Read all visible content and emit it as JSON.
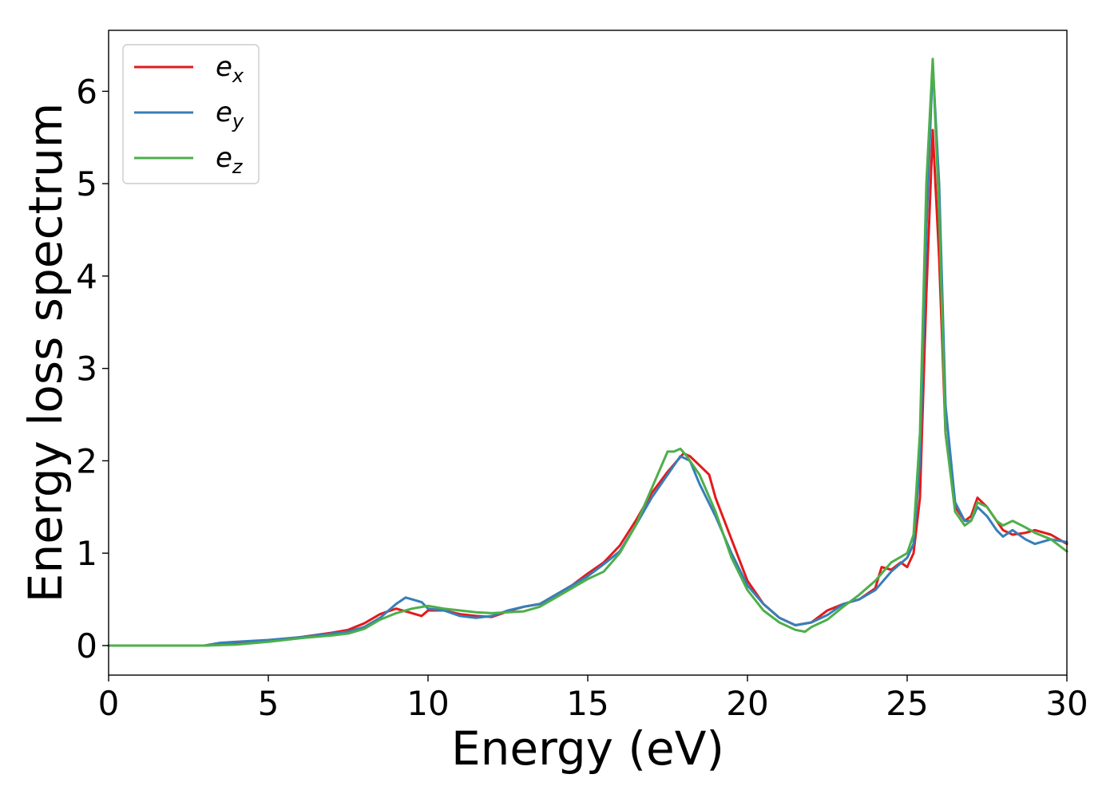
{
  "chart_data": {
    "type": "line",
    "xlabel": "Energy (eV)",
    "ylabel": "Energy loss spectrum",
    "xlim": [
      0,
      30
    ],
    "ylim": [
      -0.32,
      6.66
    ],
    "xticks": [
      "0",
      "5",
      "10",
      "15",
      "20",
      "25",
      "30"
    ],
    "yticks": [
      "0",
      "1",
      "2",
      "3",
      "4",
      "5",
      "6"
    ],
    "grid": false,
    "legend_position": "upper-left",
    "series": [
      {
        "name": "e_x",
        "label_base": "e",
        "label_sub": "x",
        "color": "#e41a1c",
        "x": [
          0,
          3,
          3.5,
          4,
          5,
          6,
          7,
          7.5,
          8,
          8.5,
          9,
          9.5,
          9.8,
          10,
          10.5,
          11,
          11.5,
          12,
          12.5,
          13,
          13.5,
          14,
          14.5,
          15,
          15.5,
          16,
          16.5,
          17,
          17.5,
          17.8,
          18,
          18.2,
          18.5,
          18.8,
          19,
          19.5,
          20,
          20.5,
          21,
          21.5,
          22,
          22.5,
          23,
          23.5,
          24,
          24.2,
          24.5,
          24.8,
          25,
          25.2,
          25.4,
          25.6,
          25.8,
          26,
          26.2,
          26.5,
          26.8,
          27,
          27.2,
          27.5,
          27.8,
          28,
          28.3,
          28.7,
          29,
          29.5,
          30
        ],
        "y": [
          0,
          0,
          0.01,
          0.02,
          0.05,
          0.09,
          0.14,
          0.17,
          0.24,
          0.34,
          0.4,
          0.35,
          0.32,
          0.38,
          0.38,
          0.34,
          0.32,
          0.31,
          0.37,
          0.42,
          0.45,
          0.55,
          0.65,
          0.78,
          0.9,
          1.08,
          1.35,
          1.65,
          1.88,
          2.0,
          2.08,
          2.05,
          1.95,
          1.85,
          1.6,
          1.15,
          0.7,
          0.45,
          0.3,
          0.22,
          0.25,
          0.38,
          0.45,
          0.5,
          0.62,
          0.85,
          0.82,
          0.9,
          0.85,
          1.0,
          1.6,
          3.8,
          5.58,
          4.2,
          2.3,
          1.5,
          1.35,
          1.4,
          1.6,
          1.5,
          1.35,
          1.25,
          1.2,
          1.22,
          1.25,
          1.2,
          1.1
        ]
      },
      {
        "name": "e_y",
        "label_base": "e",
        "label_sub": "y",
        "color": "#377eb8",
        "x": [
          0,
          3,
          3.5,
          4,
          5,
          6,
          7,
          7.5,
          8,
          8.5,
          9,
          9.3,
          9.5,
          9.8,
          10,
          10.5,
          11,
          11.5,
          12,
          12.5,
          13,
          13.5,
          14,
          14.5,
          15,
          15.5,
          16,
          16.5,
          17,
          17.5,
          17.9,
          18.2,
          18.5,
          19,
          19.5,
          20,
          20.5,
          21,
          21.5,
          22,
          22.5,
          23,
          23.5,
          24,
          24.5,
          25,
          25.2,
          25.4,
          25.6,
          25.8,
          26,
          26.2,
          26.5,
          26.8,
          27,
          27.2,
          27.5,
          27.8,
          28,
          28.3,
          28.7,
          29,
          29.5,
          30
        ],
        "y": [
          0,
          0,
          0.03,
          0.04,
          0.06,
          0.09,
          0.13,
          0.15,
          0.2,
          0.3,
          0.45,
          0.52,
          0.5,
          0.47,
          0.4,
          0.38,
          0.32,
          0.3,
          0.32,
          0.38,
          0.42,
          0.45,
          0.55,
          0.65,
          0.75,
          0.88,
          1.02,
          1.3,
          1.6,
          1.85,
          2.05,
          2.0,
          1.75,
          1.4,
          1.0,
          0.65,
          0.45,
          0.3,
          0.22,
          0.25,
          0.33,
          0.45,
          0.5,
          0.6,
          0.8,
          0.95,
          1.1,
          2.0,
          4.5,
          6.3,
          5.0,
          2.6,
          1.55,
          1.35,
          1.35,
          1.5,
          1.4,
          1.25,
          1.18,
          1.25,
          1.15,
          1.1,
          1.15,
          1.12
        ]
      },
      {
        "name": "e_z",
        "label_base": "e",
        "label_sub": "z",
        "color": "#4daf4a",
        "x": [
          0,
          3,
          4,
          5,
          6,
          7,
          7.5,
          8,
          8.5,
          9,
          9.5,
          10,
          10.5,
          11,
          11.5,
          12,
          12.5,
          13,
          13.5,
          14,
          14.5,
          15,
          15.5,
          16,
          16.5,
          17,
          17.5,
          17.7,
          17.9,
          18.1,
          18.5,
          19,
          19.5,
          20,
          20.5,
          21,
          21.5,
          21.8,
          22,
          22.5,
          23,
          23.5,
          24,
          24.5,
          25,
          25.2,
          25.4,
          25.6,
          25.8,
          26,
          26.2,
          26.5,
          26.8,
          27,
          27.2,
          27.5,
          27.8,
          28,
          28.3,
          28.7,
          29,
          29.5,
          30
        ],
        "y": [
          0,
          0,
          0.01,
          0.04,
          0.08,
          0.11,
          0.13,
          0.18,
          0.28,
          0.35,
          0.4,
          0.43,
          0.4,
          0.38,
          0.36,
          0.35,
          0.36,
          0.37,
          0.42,
          0.52,
          0.62,
          0.72,
          0.8,
          1.0,
          1.3,
          1.7,
          2.1,
          2.1,
          2.13,
          2.05,
          1.85,
          1.45,
          0.95,
          0.6,
          0.38,
          0.25,
          0.17,
          0.15,
          0.2,
          0.28,
          0.42,
          0.55,
          0.7,
          0.9,
          1.0,
          1.2,
          2.3,
          5.0,
          6.35,
          4.7,
          2.3,
          1.45,
          1.3,
          1.35,
          1.55,
          1.5,
          1.35,
          1.3,
          1.35,
          1.28,
          1.22,
          1.15,
          1.02
        ]
      }
    ]
  }
}
